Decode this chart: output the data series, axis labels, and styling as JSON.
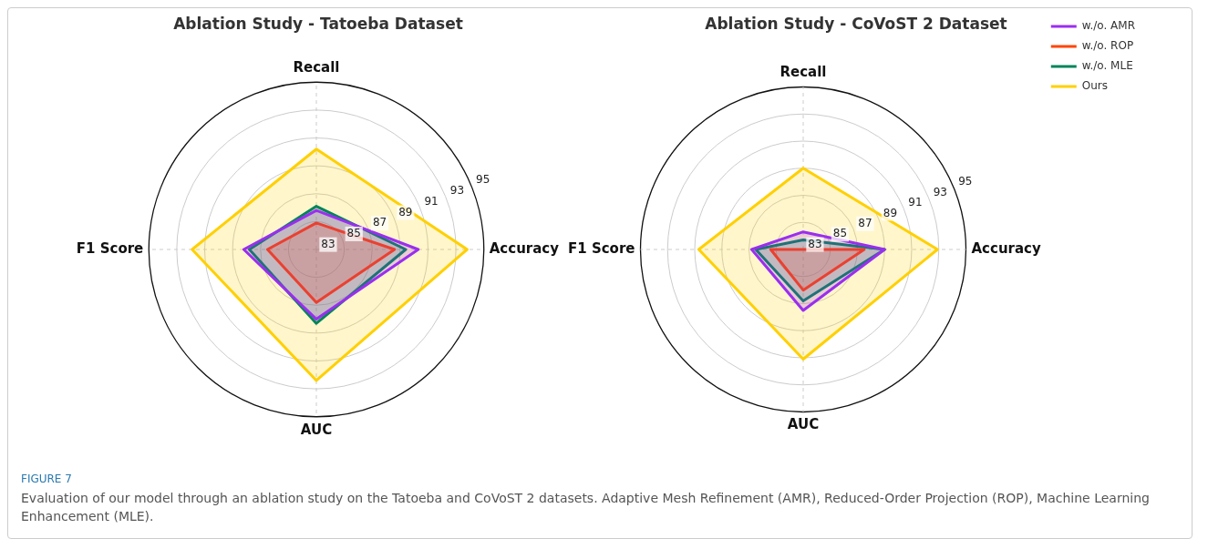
{
  "chart_data": [
    {
      "type": "radar",
      "title": "Ablation Study - Tatoeba Dataset",
      "categories": [
        "Recall",
        "Accuracy",
        "AUC",
        "F1 Score"
      ],
      "series": [
        {
          "color": "#9a2ef0",
          "values": [
            85.8,
            90.3,
            88.0,
            88.2
          ]
        },
        {
          "color": "#ff4500",
          "values": [
            84.9,
            88.6,
            86.8,
            86.5
          ]
        },
        {
          "color": "#00845a",
          "values": [
            86.1,
            89.4,
            88.3,
            87.8
          ]
        },
        {
          "color": "#ffd000",
          "values": [
            90.2,
            93.8,
            92.4,
            91.9
          ]
        }
      ],
      "ylim": [
        83,
        95
      ],
      "yticks": [
        83,
        85,
        87,
        89,
        91,
        93,
        95
      ],
      "grid": true,
      "legend": false,
      "marker": "none",
      "annotations": [
        "FIGURE 7",
        "Evaluation of our model through an ablation study on the Tatoeba and CoVoST 2 datasets. Adaptive Mesh Refinement (AMR), Reduced-Order Projection (ROP), Machine Learning Enhancement (MLE)."
      ]
    },
    {
      "type": "radar",
      "title": "Ablation Study - CoVoST 2 Dataset",
      "categories": [
        "Recall",
        "Accuracy",
        "AUC",
        "F1 Score"
      ],
      "series": [
        {
          "name": "w./o. AMR",
          "color": "#9a2ef0",
          "values": [
            84.3,
            89.0,
            87.5,
            86.8
          ]
        },
        {
          "name": "w./o. ROP",
          "color": "#ff4500",
          "values": [
            83.0,
            87.5,
            86.0,
            85.4
          ]
        },
        {
          "name": "w./o. MLE",
          "color": "#00845a",
          "values": [
            83.7,
            89.0,
            86.8,
            86.5
          ]
        },
        {
          "name": "Ours",
          "color": "#ffd000",
          "values": [
            89.0,
            92.9,
            91.1,
            90.7
          ]
        }
      ],
      "ylim": [
        83,
        95
      ],
      "yticks": [
        83,
        85,
        87,
        89,
        91,
        93,
        95
      ],
      "grid": true,
      "legend": "top right",
      "marker": "none"
    }
  ]
}
